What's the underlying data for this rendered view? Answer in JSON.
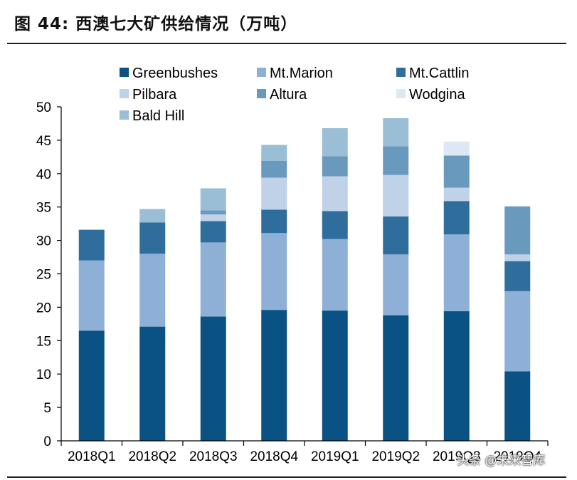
{
  "title": "图 44:  西澳七大矿供给情况（万吨）",
  "watermark": "头条 @未来智库",
  "chart_data": {
    "type": "bar",
    "stacked": true,
    "title": "图 44:  西澳七大矿供给情况（万吨）",
    "xlabel": "",
    "ylabel": "",
    "ylim": [
      0,
      50
    ],
    "yticks": [
      "0",
      "5",
      "10",
      "15",
      "20",
      "25",
      "30",
      "35",
      "40",
      "45",
      "50"
    ],
    "categories": [
      "2018Q1",
      "2018Q2",
      "2018Q3",
      "2018Q4",
      "2019Q1",
      "2019Q2",
      "2019Q3",
      "2019Q4"
    ],
    "legend_position": "top",
    "series": [
      {
        "name": "Greenbushes",
        "color": "#0a5283",
        "values": [
          16.5,
          17.1,
          18.6,
          19.6,
          19.5,
          18.8,
          19.4,
          10.4
        ]
      },
      {
        "name": "Mt.Marion",
        "color": "#8fb0d6",
        "values": [
          10.5,
          10.9,
          11.1,
          11.5,
          10.7,
          9.1,
          11.5,
          12.0
        ]
      },
      {
        "name": "Mt.Cattlin",
        "color": "#2f6e9c",
        "values": [
          4.6,
          4.7,
          3.2,
          3.5,
          4.2,
          5.7,
          5.0,
          4.5
        ]
      },
      {
        "name": "Pilbara",
        "color": "#bfd2e8",
        "values": [
          0,
          0,
          1.0,
          4.8,
          5.2,
          6.2,
          2.0,
          1.0
        ]
      },
      {
        "name": "Altura",
        "color": "#6a99be",
        "values": [
          0,
          0,
          0.6,
          2.5,
          3.0,
          4.3,
          4.8,
          7.2
        ]
      },
      {
        "name": "Wodgina",
        "color": "#dde8f4",
        "values": [
          0,
          0,
          0,
          0,
          0,
          0,
          2.1,
          0
        ]
      },
      {
        "name": "Bald Hill",
        "color": "#9abed6",
        "values": [
          0,
          2.0,
          3.3,
          2.4,
          4.2,
          4.2,
          0,
          0
        ]
      }
    ]
  }
}
